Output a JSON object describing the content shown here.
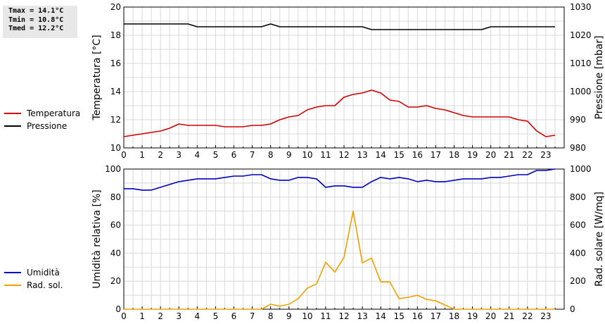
{
  "stats": {
    "tmax": "Tmax = 14.1°C",
    "tmin": "Tmin = 10.8°C",
    "tmed": "Tmed = 12.2°C"
  },
  "chart_data": [
    {
      "type": "line",
      "x_ticks": [
        "0",
        "1",
        "2",
        "3",
        "4",
        "5",
        "6",
        "7",
        "8",
        "9",
        "10",
        "11",
        "12",
        "13",
        "14",
        "15",
        "16",
        "17",
        "18",
        "19",
        "20",
        "21",
        "22",
        "23"
      ],
      "xlim": [
        0,
        24
      ],
      "ylabel": "Temperatura [°C]",
      "ylim": [
        10,
        20
      ],
      "y_ticks": [
        "10",
        "12",
        "14",
        "16",
        "18",
        "20"
      ],
      "y2label": "Pressione [mbar]",
      "y2lim": [
        980,
        1030
      ],
      "y2_ticks": [
        "980",
        "990",
        "1000",
        "1010",
        "1020",
        "1030"
      ],
      "grid": true,
      "legend": "left",
      "series": [
        {
          "name": "Temperatura",
          "axis": "left",
          "color": "#d00000",
          "x": [
            0,
            0.5,
            1,
            1.5,
            2,
            2.5,
            3,
            3.5,
            4,
            4.5,
            5,
            5.5,
            6,
            6.5,
            7,
            7.5,
            8,
            8.5,
            9,
            9.5,
            10,
            10.5,
            11,
            11.5,
            12,
            12.5,
            13,
            13.5,
            14,
            14.5,
            15,
            15.5,
            16,
            16.5,
            17,
            17.5,
            18,
            18.5,
            19,
            19.5,
            20,
            20.5,
            21,
            21.5,
            22,
            22.5,
            23,
            23.5
          ],
          "y": [
            10.8,
            10.9,
            11.0,
            11.1,
            11.2,
            11.4,
            11.7,
            11.6,
            11.6,
            11.6,
            11.6,
            11.5,
            11.5,
            11.5,
            11.6,
            11.6,
            11.7,
            12.0,
            12.2,
            12.3,
            12.7,
            12.9,
            13.0,
            13.0,
            13.6,
            13.8,
            13.9,
            14.1,
            13.9,
            13.4,
            13.3,
            12.9,
            12.9,
            13.0,
            12.8,
            12.7,
            12.5,
            12.3,
            12.2,
            12.2,
            12.2,
            12.2,
            12.2,
            12.0,
            11.9,
            11.2,
            10.8,
            10.9
          ]
        },
        {
          "name": "Pressione",
          "axis": "right",
          "color": "#000000",
          "x": [
            0,
            0.5,
            1,
            1.5,
            2,
            2.5,
            3,
            3.5,
            4,
            4.5,
            5,
            5.5,
            6,
            6.5,
            7,
            7.5,
            8,
            8.5,
            9,
            9.5,
            10,
            10.5,
            11,
            11.5,
            12,
            12.5,
            13,
            13.5,
            14,
            14.5,
            15,
            15.5,
            16,
            16.5,
            17,
            17.5,
            18,
            18.5,
            19,
            19.5,
            20,
            20.5,
            21,
            21.5,
            22,
            22.5,
            23,
            23.5
          ],
          "y": [
            1024,
            1024,
            1024,
            1024,
            1024,
            1024,
            1024,
            1024,
            1023,
            1023,
            1023,
            1023,
            1023,
            1023,
            1023,
            1023,
            1024,
            1023,
            1023,
            1023,
            1023,
            1023,
            1023,
            1023,
            1023,
            1023,
            1023,
            1022,
            1022,
            1022,
            1022,
            1022,
            1022,
            1022,
            1022,
            1022,
            1022,
            1022,
            1022,
            1022,
            1023,
            1023,
            1023,
            1023,
            1023,
            1023,
            1023,
            1023
          ]
        }
      ]
    },
    {
      "type": "line",
      "x_ticks": [
        "0",
        "1",
        "2",
        "3",
        "4",
        "5",
        "6",
        "7",
        "8",
        "9",
        "10",
        "11",
        "12",
        "13",
        "14",
        "15",
        "16",
        "17",
        "18",
        "19",
        "20",
        "21",
        "22",
        "23"
      ],
      "xlim": [
        0,
        24
      ],
      "ylabel": "Umidità relativa [%]",
      "ylim": [
        0,
        100
      ],
      "y_ticks": [
        "0",
        "20",
        "40",
        "60",
        "80",
        "100"
      ],
      "y2label": "Rad. solare [W/mq]",
      "y2lim": [
        0,
        1000
      ],
      "y2_ticks": [
        "0",
        "200",
        "400",
        "600",
        "800",
        "1000"
      ],
      "grid": true,
      "legend": "left",
      "series": [
        {
          "name": "Umidità",
          "axis": "left",
          "color": "#0000c0",
          "x": [
            0,
            0.5,
            1,
            1.5,
            2,
            2.5,
            3,
            3.5,
            4,
            4.5,
            5,
            5.5,
            6,
            6.5,
            7,
            7.5,
            8,
            8.5,
            9,
            9.5,
            10,
            10.5,
            11,
            11.5,
            12,
            12.5,
            13,
            13.5,
            14,
            14.5,
            15,
            15.5,
            16,
            16.5,
            17,
            17.5,
            18,
            18.5,
            19,
            19.5,
            20,
            20.5,
            21,
            21.5,
            22,
            22.5,
            23,
            23.5
          ],
          "y": [
            86,
            86,
            85,
            85,
            87,
            89,
            91,
            92,
            93,
            93,
            93,
            94,
            95,
            95,
            96,
            96,
            93,
            92,
            92,
            94,
            94,
            93,
            87,
            88,
            88,
            87,
            87,
            91,
            94,
            93,
            94,
            93,
            91,
            92,
            91,
            91,
            92,
            93,
            93,
            93,
            94,
            94,
            95,
            96,
            96,
            99,
            99,
            100
          ]
        },
        {
          "name": "Rad. sol.",
          "axis": "right",
          "color": "#f0a000",
          "x": [
            0,
            0.5,
            1,
            1.5,
            2,
            2.5,
            3,
            3.5,
            4,
            4.5,
            5,
            5.5,
            6,
            6.5,
            7,
            7.5,
            8,
            8.5,
            9,
            9.5,
            10,
            10.5,
            11,
            11.5,
            12,
            12.5,
            13,
            13.5,
            14,
            14.5,
            15,
            15.5,
            16,
            16.5,
            17,
            17.5,
            18,
            18.5,
            19,
            19.5,
            20,
            20.5,
            21,
            21.5,
            22,
            22.5,
            23,
            23.5
          ],
          "y": [
            0,
            0,
            0,
            0,
            0,
            0,
            0,
            0,
            0,
            0,
            0,
            0,
            0,
            0,
            0,
            0,
            35,
            22,
            35,
            75,
            150,
            180,
            335,
            265,
            370,
            700,
            330,
            365,
            195,
            195,
            75,
            85,
            100,
            70,
            60,
            30,
            0,
            0,
            0,
            0,
            0,
            0,
            0,
            0,
            0,
            0,
            0,
            0
          ]
        }
      ]
    }
  ]
}
